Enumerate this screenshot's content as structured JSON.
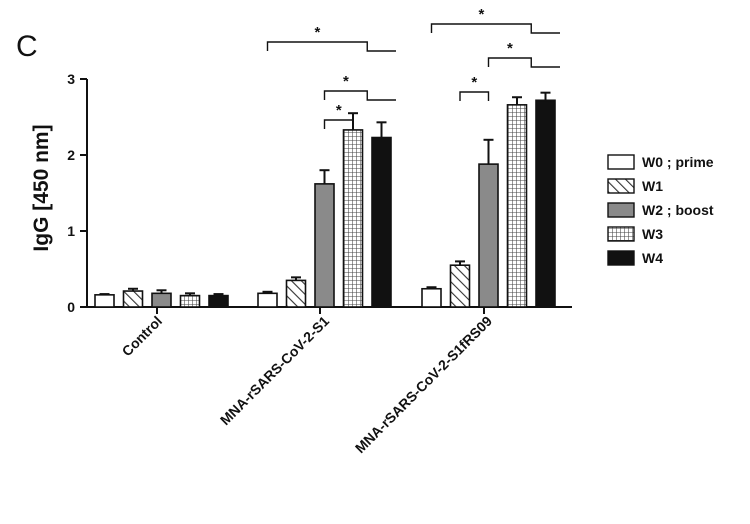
{
  "panel_label": "C",
  "chart_data": {
    "type": "bar",
    "ylabel": "IgG [450 nm]",
    "xlabel": "",
    "ylim": [
      0,
      3
    ],
    "yticks": [
      0,
      1,
      2,
      3
    ],
    "grid": false,
    "legend_position": "right",
    "categories": [
      "Control",
      "MNA-rSARS-CoV-2-S1",
      "MNA-rSARS-CoV-2-S1fRS09"
    ],
    "series": [
      {
        "name": "W0 ; prime",
        "pattern": "open",
        "values": [
          0.16,
          0.18,
          0.24
        ],
        "errors": [
          0.01,
          0.02,
          0.02
        ]
      },
      {
        "name": "W1",
        "pattern": "hatched",
        "values": [
          0.21,
          0.35,
          0.55
        ],
        "errors": [
          0.03,
          0.04,
          0.05
        ]
      },
      {
        "name": "W2 ; boost",
        "pattern": "gray",
        "values": [
          0.18,
          1.62,
          1.88
        ],
        "errors": [
          0.04,
          0.18,
          0.32
        ]
      },
      {
        "name": "W3",
        "pattern": "checkered",
        "values": [
          0.15,
          2.33,
          2.66
        ],
        "errors": [
          0.03,
          0.22,
          0.1
        ]
      },
      {
        "name": "W4",
        "pattern": "black",
        "values": [
          0.15,
          2.23,
          2.72
        ],
        "errors": [
          0.02,
          0.2,
          0.1
        ]
      }
    ],
    "significance": [
      {
        "category": 1,
        "from": 2,
        "to": [
          3
        ],
        "label": "*"
      },
      {
        "category": 1,
        "from": 2,
        "to": [
          3,
          4
        ],
        "label": "*"
      },
      {
        "category": 1,
        "from": 0,
        "to": [
          3,
          4
        ],
        "label": "*"
      },
      {
        "category": 2,
        "from": 1,
        "to": [
          2
        ],
        "label": "*"
      },
      {
        "category": 2,
        "from": 2,
        "to": [
          3,
          4
        ],
        "label": "*"
      },
      {
        "category": 2,
        "from": 0,
        "to": [
          3,
          4
        ],
        "label": "*"
      }
    ]
  }
}
